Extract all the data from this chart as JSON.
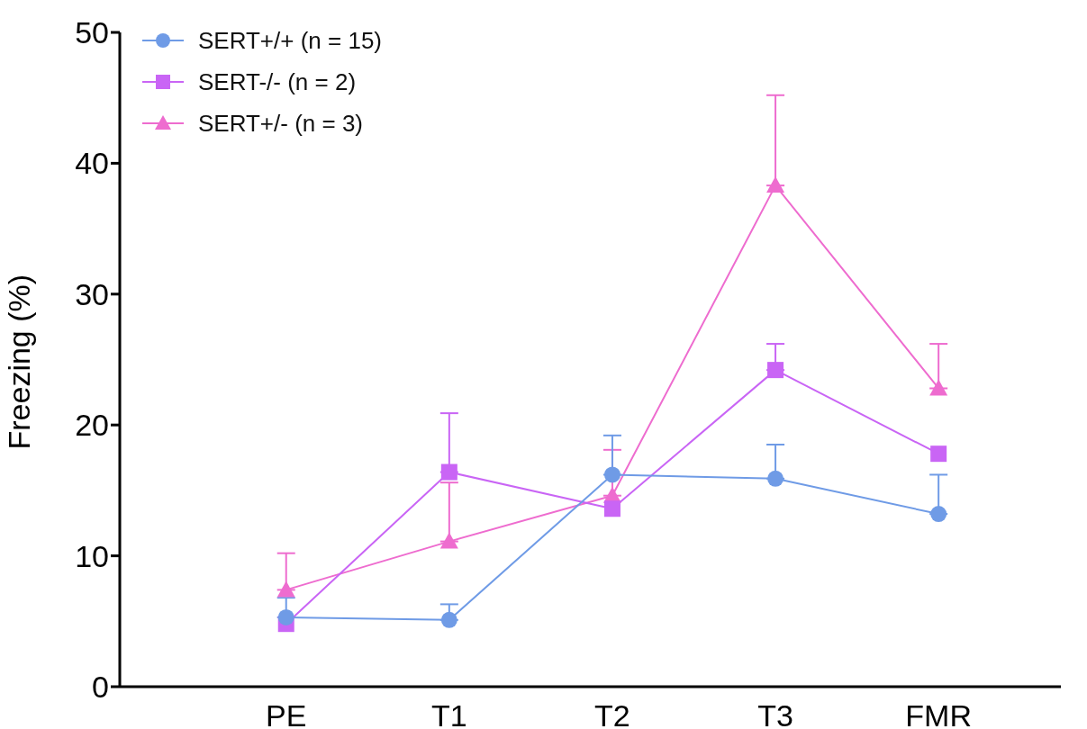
{
  "chart_data": {
    "type": "line",
    "ylabel": "Freezing (%)",
    "categories": [
      "PE",
      "T1",
      "T2",
      "T3",
      "FMR"
    ],
    "series": [
      {
        "name": "SERT+/+ (n = 15)",
        "color": "#6f9be6",
        "marker": "circle",
        "values": [
          5.3,
          5.1,
          16.2,
          15.9,
          13.2
        ],
        "errors": [
          [
            5.3,
            6.8
          ],
          [
            5.1,
            6.3
          ],
          [
            16.2,
            19.2
          ],
          [
            15.9,
            18.5
          ],
          [
            13.2,
            16.2
          ]
        ]
      },
      {
        "name": "SERT-/- (n = 2)",
        "color": "#c965f5",
        "marker": "square",
        "values": [
          4.8,
          16.4,
          13.6,
          24.2,
          17.8
        ],
        "errors": [
          null,
          [
            16.4,
            20.9
          ],
          null,
          [
            24.2,
            26.2
          ],
          null
        ]
      },
      {
        "name": "SERT+/- (n = 3)",
        "color": "#ee6ccf",
        "marker": "triangle",
        "values": [
          7.4,
          11.1,
          14.6,
          38.3,
          22.8
        ],
        "errors": [
          [
            7.4,
            10.2
          ],
          [
            11.1,
            15.6
          ],
          [
            14.6,
            18.1
          ],
          [
            38.3,
            45.2
          ],
          [
            22.8,
            26.2
          ]
        ]
      }
    ],
    "ylim": [
      0,
      50
    ],
    "yticks": [
      0,
      10,
      20,
      30,
      40,
      50
    ],
    "grid": false,
    "legend": "top left"
  }
}
